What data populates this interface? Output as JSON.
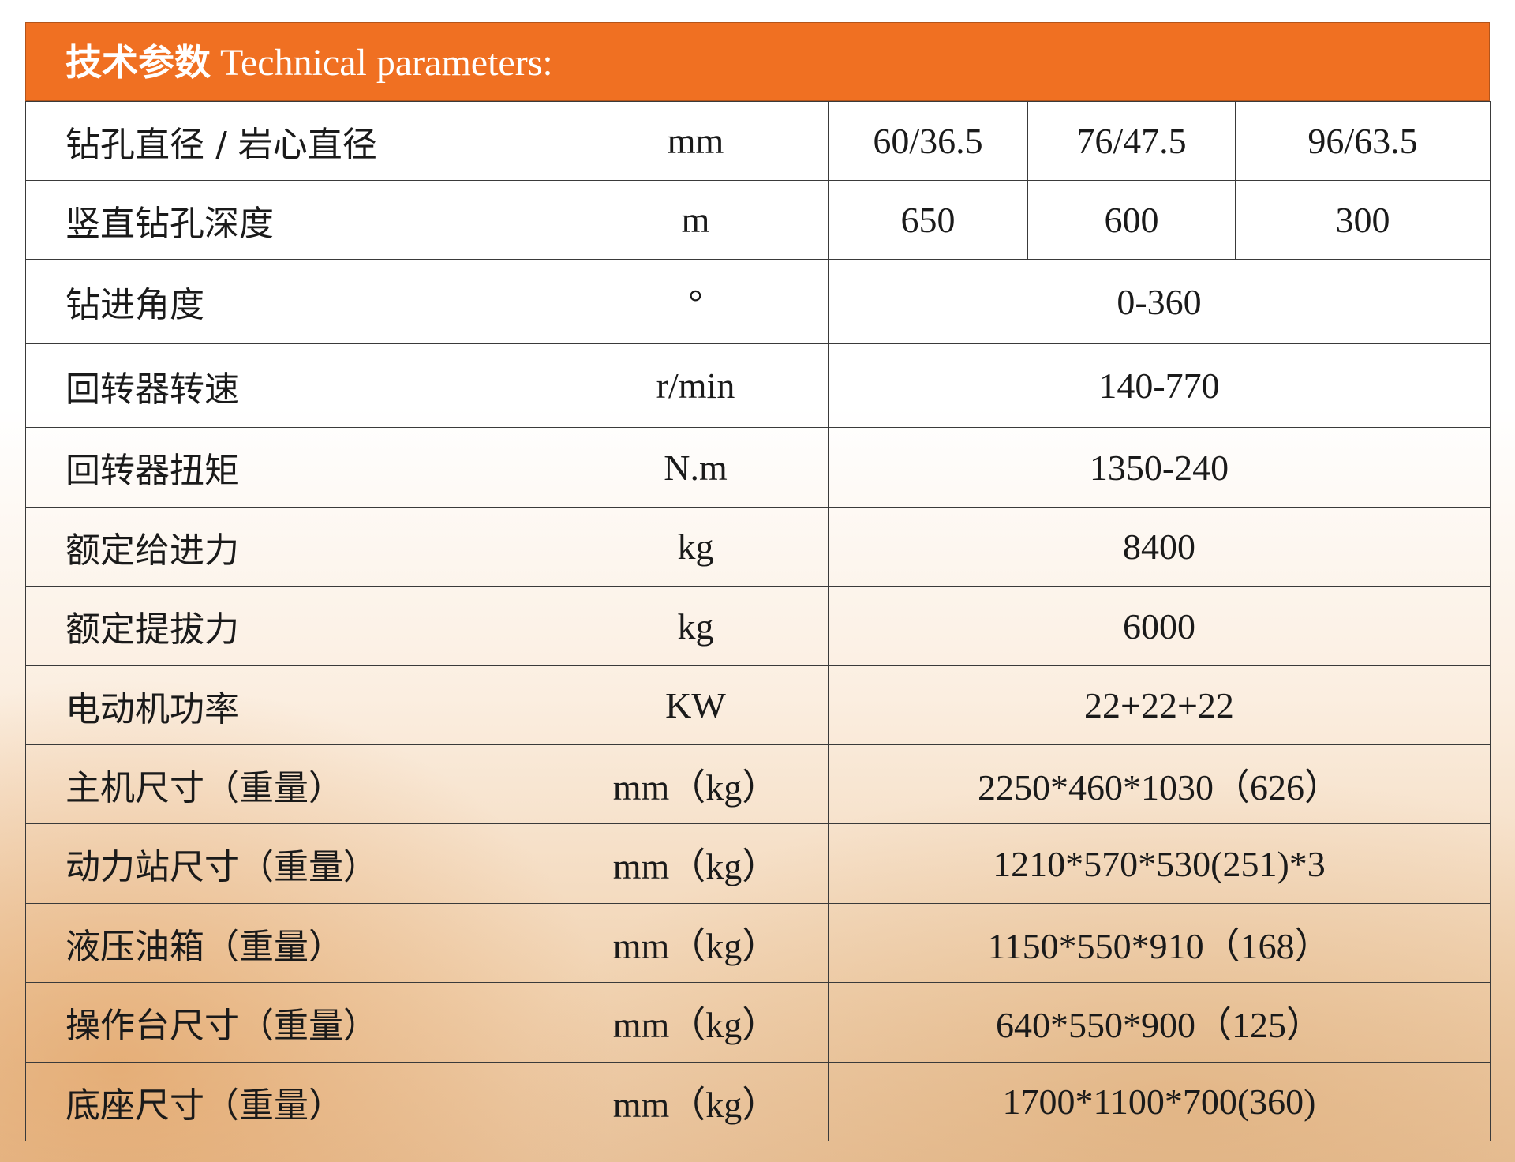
{
  "header": {
    "title_cn": "技术参数",
    "title_en": "Technical parameters:"
  },
  "colors": {
    "header_bg": "#f07022",
    "header_text": "#ffffff"
  },
  "rows": [
    {
      "name": "钻孔直径 / 岩心直径",
      "unit": "mm",
      "values": [
        "60/36.5",
        "76/47.5",
        "96/63.5"
      ]
    },
    {
      "name": "竖直钻孔深度",
      "unit": "m",
      "values": [
        "650",
        "600",
        "300"
      ]
    },
    {
      "name": "钻进角度",
      "unit": "°",
      "value": "0-360"
    },
    {
      "name": "回转器转速",
      "unit": "r/min",
      "value": "140-770"
    },
    {
      "name": "回转器扭矩",
      "unit": "N.m",
      "value": "1350-240"
    },
    {
      "name": "额定给进力",
      "unit": "kg",
      "value": "8400"
    },
    {
      "name": "额定提拔力",
      "unit": "kg",
      "value": "6000"
    },
    {
      "name": "电动机功率",
      "unit": "KW",
      "value": "22+22+22"
    },
    {
      "name": "主机尺寸（重量）",
      "unit": "mm（kg）",
      "value": "2250*460*1030（626）"
    },
    {
      "name": "动力站尺寸（重量）",
      "unit": "mm（kg）",
      "value": "1210*570*530(251)*3"
    },
    {
      "name": "液压油箱（重量）",
      "unit": "mm（kg）",
      "value": "1150*550*910（168）"
    },
    {
      "name": "操作台尺寸（重量）",
      "unit": "mm（kg）",
      "value": "640*550*900（125）"
    },
    {
      "name": "底座尺寸（重量）",
      "unit": "mm（kg）",
      "value": "1700*1100*700(360)"
    }
  ]
}
